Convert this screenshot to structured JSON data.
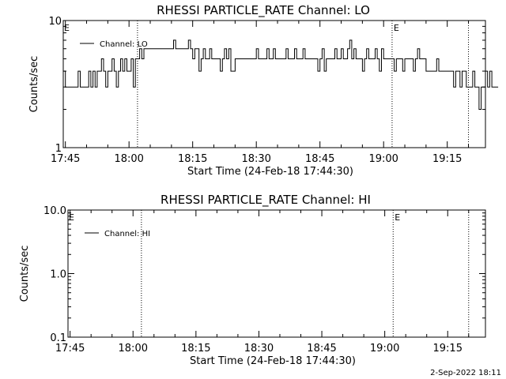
{
  "colors": {
    "background": "#ffffff",
    "foreground": "#000000"
  },
  "footer": {
    "date_stamp": "2-Sep-2022 18:11"
  },
  "chart_data": [
    {
      "type": "line",
      "title": "RHESSI PARTICLE_RATE Channel: LO",
      "xlabel": "Start Time (24-Feb-18 17:44:30)",
      "ylabel": "Counts/sec",
      "y_scale": "log",
      "ylim": [
        1,
        10
      ],
      "y_ticks": [
        1,
        10
      ],
      "y_tick_labels": [
        "1",
        "10"
      ],
      "xlim": [
        "17:44:30",
        "19:24:00"
      ],
      "x_ticks": [
        "17:45",
        "18:00",
        "18:15",
        "18:30",
        "18:45",
        "19:00",
        "19:15"
      ],
      "legend": {
        "position": "top-left",
        "entries": [
          "Channel: LO"
        ]
      },
      "vlines": [
        {
          "time": "18:02",
          "label": ""
        },
        {
          "time": "19:02",
          "label": "E"
        },
        {
          "time": "19:20",
          "label": ""
        }
      ],
      "left_edge_label": "E",
      "grid": false,
      "series": [
        {
          "name": "Channel: LO",
          "step_minutes": 0.5,
          "start": "17:44:30",
          "values": [
            4,
            3,
            3,
            3,
            3,
            3,
            3,
            4,
            3,
            3,
            3,
            3,
            4,
            3,
            4,
            3,
            4,
            4,
            5,
            4,
            3,
            4,
            4,
            5,
            4,
            3,
            4,
            5,
            4,
            5,
            4,
            4,
            5,
            3,
            5,
            5,
            6,
            5,
            6,
            6,
            6,
            6,
            6,
            6,
            6,
            6,
            6,
            6,
            6,
            6,
            6,
            6,
            7,
            6,
            6,
            6,
            6,
            6,
            6,
            7,
            6,
            5,
            6,
            6,
            4,
            5,
            6,
            5,
            5,
            6,
            5,
            5,
            5,
            5,
            4,
            5,
            6,
            5,
            6,
            4,
            4,
            5,
            5,
            5,
            5,
            5,
            5,
            5,
            5,
            5,
            5,
            6,
            5,
            5,
            5,
            5,
            6,
            5,
            5,
            6,
            5,
            5,
            5,
            5,
            5,
            6,
            5,
            5,
            5,
            6,
            5,
            5,
            5,
            6,
            5,
            5,
            5,
            5,
            5,
            5,
            4,
            5,
            6,
            4,
            5,
            5,
            5,
            5,
            6,
            5,
            5,
            6,
            5,
            5,
            6,
            7,
            5,
            6,
            5,
            5,
            5,
            4,
            5,
            6,
            5,
            5,
            5,
            6,
            5,
            4,
            6,
            5,
            5,
            5,
            5,
            5,
            4,
            5,
            5,
            5,
            4,
            5,
            5,
            5,
            5,
            4,
            5,
            6,
            5,
            5,
            5,
            4,
            4,
            4,
            4,
            4,
            5,
            4,
            4,
            4,
            4,
            4,
            4,
            4,
            3,
            4,
            4,
            3,
            4,
            4,
            3,
            3,
            3,
            4,
            3,
            3,
            2,
            3,
            3,
            4,
            3,
            4,
            3,
            3,
            3
          ]
        }
      ]
    },
    {
      "type": "line",
      "title": "RHESSI PARTICLE_RATE Channel: HI",
      "xlabel": "Start Time (24-Feb-18 17:44:30)",
      "ylabel": "Counts/sec",
      "y_scale": "log",
      "ylim": [
        0.1,
        10
      ],
      "y_ticks": [
        0.1,
        1,
        10
      ],
      "y_tick_labels": [
        "0.1",
        "1.0",
        "10.0"
      ],
      "xlim": [
        "17:44:30",
        "19:24:00"
      ],
      "x_ticks": [
        "17:45",
        "18:00",
        "18:15",
        "18:30",
        "18:45",
        "19:00",
        "19:15"
      ],
      "legend": {
        "position": "top-left",
        "entries": [
          "Channel: HI"
        ]
      },
      "vlines": [
        {
          "time": "18:02",
          "label": ""
        },
        {
          "time": "19:02",
          "label": "E"
        },
        {
          "time": "19:20",
          "label": ""
        }
      ],
      "left_edge_label": "E",
      "grid": false,
      "series": [
        {
          "name": "Channel: HI",
          "values": []
        }
      ]
    }
  ]
}
